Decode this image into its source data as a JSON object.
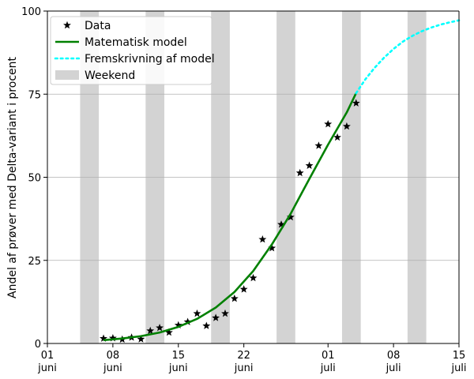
{
  "chart_data": {
    "type": "line",
    "title": "",
    "xlabel": "",
    "ylabel": "Andel af prøver med Delta-variant i procent",
    "x_domain": [
      "2021-06-01",
      "2021-07-15"
    ],
    "ylim": [
      0,
      100
    ],
    "y_ticks": [
      0,
      25,
      50,
      75,
      100
    ],
    "x_ticks": [
      {
        "date": "2021-06-01",
        "day": "01",
        "month": "juni"
      },
      {
        "date": "2021-06-08",
        "day": "08",
        "month": "juni"
      },
      {
        "date": "2021-06-15",
        "day": "15",
        "month": "juni"
      },
      {
        "date": "2021-06-22",
        "day": "22",
        "month": "juni"
      },
      {
        "date": "2021-07-01",
        "day": "01",
        "month": "juli"
      },
      {
        "date": "2021-07-08",
        "day": "08",
        "month": "juli"
      },
      {
        "date": "2021-07-15",
        "day": "15",
        "month": "juli"
      }
    ],
    "grid": "horizontal",
    "legend_position": "top-left",
    "weekends": [
      [
        "2021-06-05",
        "2021-06-07"
      ],
      [
        "2021-06-12",
        "2021-06-14"
      ],
      [
        "2021-06-19",
        "2021-06-21"
      ],
      [
        "2021-06-26",
        "2021-06-28"
      ],
      [
        "2021-07-03",
        "2021-07-05"
      ],
      [
        "2021-07-10",
        "2021-07-12"
      ]
    ],
    "series": [
      {
        "name": "Data",
        "kind": "scatter",
        "marker": "star",
        "color": "#000000",
        "points": [
          [
            "2021-06-07",
            1.5
          ],
          [
            "2021-06-08",
            1.6
          ],
          [
            "2021-06-09",
            1.2
          ],
          [
            "2021-06-10",
            1.8
          ],
          [
            "2021-06-11",
            1.3
          ],
          [
            "2021-06-12",
            3.8
          ],
          [
            "2021-06-13",
            4.7
          ],
          [
            "2021-06-14",
            3.3
          ],
          [
            "2021-06-15",
            5.5
          ],
          [
            "2021-06-16",
            6.5
          ],
          [
            "2021-06-17",
            9.0
          ],
          [
            "2021-06-18",
            5.3
          ],
          [
            "2021-06-19",
            7.7
          ],
          [
            "2021-06-20",
            9.0
          ],
          [
            "2021-06-21",
            13.5
          ],
          [
            "2021-06-22",
            16.3
          ],
          [
            "2021-06-23",
            19.7
          ],
          [
            "2021-06-24",
            31.3
          ],
          [
            "2021-06-25",
            28.7
          ],
          [
            "2021-06-26",
            35.8
          ],
          [
            "2021-06-27",
            38.0
          ],
          [
            "2021-06-28",
            51.3
          ],
          [
            "2021-06-29",
            53.5
          ],
          [
            "2021-06-30",
            59.5
          ],
          [
            "2021-07-01",
            66.0
          ],
          [
            "2021-07-02",
            62.0
          ],
          [
            "2021-07-03",
            65.3
          ],
          [
            "2021-07-04",
            72.3
          ]
        ]
      },
      {
        "name": "Matematisk model",
        "kind": "line",
        "color": "#008000",
        "points": [
          [
            "2021-06-07",
            1.0
          ],
          [
            "2021-06-09",
            1.5
          ],
          [
            "2021-06-11",
            2.2
          ],
          [
            "2021-06-13",
            3.3
          ],
          [
            "2021-06-15",
            5.0
          ],
          [
            "2021-06-17",
            7.4
          ],
          [
            "2021-06-19",
            10.8
          ],
          [
            "2021-06-21",
            15.5
          ],
          [
            "2021-06-23",
            21.8
          ],
          [
            "2021-06-25",
            29.8
          ],
          [
            "2021-06-27",
            39.0
          ],
          [
            "2021-06-29",
            49.5
          ],
          [
            "2021-07-01",
            59.8
          ],
          [
            "2021-07-03",
            69.5
          ],
          [
            "2021-07-04",
            75.3
          ]
        ]
      },
      {
        "name": "Fremskrivning af model",
        "kind": "line",
        "style": "dotted",
        "color": "#00ffff",
        "points": [
          [
            "2021-07-04",
            75.3
          ],
          [
            "2021-07-05",
            79.5
          ],
          [
            "2021-07-06",
            83.0
          ],
          [
            "2021-07-07",
            86.0
          ],
          [
            "2021-07-08",
            88.6
          ],
          [
            "2021-07-09",
            90.8
          ],
          [
            "2021-07-10",
            92.5
          ],
          [
            "2021-07-11",
            93.9
          ],
          [
            "2021-07-12",
            95.0
          ],
          [
            "2021-07-13",
            95.9
          ],
          [
            "2021-07-14",
            96.6
          ],
          [
            "2021-07-15",
            97.2
          ]
        ]
      }
    ],
    "legend": [
      {
        "label": "Data",
        "kind": "star",
        "color": "#000000"
      },
      {
        "label": "Matematisk model",
        "kind": "line",
        "color": "#008000"
      },
      {
        "label": "Fremskrivning af model",
        "kind": "dotted",
        "color": "#00ffff"
      },
      {
        "label": "Weekend",
        "kind": "patch",
        "color": "#d3d3d3"
      }
    ]
  }
}
